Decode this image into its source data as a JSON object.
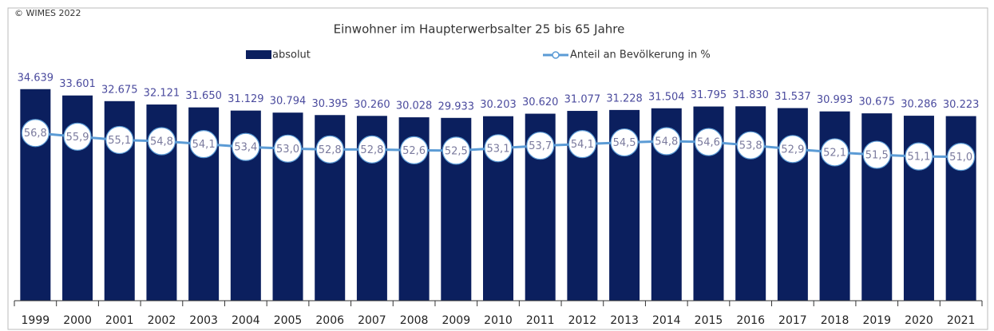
{
  "chart_data": {
    "type": "bar-line",
    "source": "© WIMES 2022",
    "title": "Einwohner im Haupterwerbsalter 25 bis 65 Jahre",
    "categories": [
      "1999",
      "2000",
      "2001",
      "2002",
      "2003",
      "2004",
      "2005",
      "2006",
      "2007",
      "2008",
      "2009",
      "2010",
      "2011",
      "2012",
      "2013",
      "2014",
      "2015",
      "2016",
      "2017",
      "2018",
      "2019",
      "2020",
      "2021"
    ],
    "series": [
      {
        "name": "absolut",
        "type": "bar",
        "color": "#0b1f5e",
        "values": [
          34639,
          33601,
          32675,
          32121,
          31650,
          31129,
          30794,
          30395,
          30260,
          30028,
          29933,
          30203,
          30620,
          31077,
          31228,
          31504,
          31795,
          31830,
          31537,
          30993,
          30675,
          30286,
          30223
        ],
        "value_labels": [
          "34.639",
          "33.601",
          "32.675",
          "32.121",
          "31.650",
          "31.129",
          "30.794",
          "30.395",
          "30.260",
          "30.028",
          "29.933",
          "30.203",
          "30.620",
          "31.077",
          "31.228",
          "31.504",
          "31.795",
          "31.830",
          "31.537",
          "30.993",
          "30.675",
          "30.286",
          "30.223"
        ]
      },
      {
        "name": "Anteil an Bevölkerung in %",
        "type": "line",
        "axis": "y2",
        "color": "#5b9bd5",
        "values": [
          56.8,
          55.9,
          55.1,
          54.8,
          54.1,
          53.4,
          53.0,
          52.8,
          52.8,
          52.6,
          52.5,
          53.1,
          53.7,
          54.1,
          54.5,
          54.8,
          54.6,
          53.8,
          52.9,
          52.1,
          51.5,
          51.1,
          51.0
        ],
        "value_labels": [
          "56,8",
          "55,9",
          "55,1",
          "54,8",
          "54,1",
          "53,4",
          "53,0",
          "52,8",
          "52,8",
          "52,6",
          "52,5",
          "53,1",
          "53,7",
          "54,1",
          "54,5",
          "54,8",
          "54,6",
          "53,8",
          "52,9",
          "52,1",
          "51,5",
          "51,1",
          "51,0"
        ]
      }
    ],
    "ylim": [
      0,
      35000
    ],
    "y2lim": [
      16,
      68
    ]
  }
}
